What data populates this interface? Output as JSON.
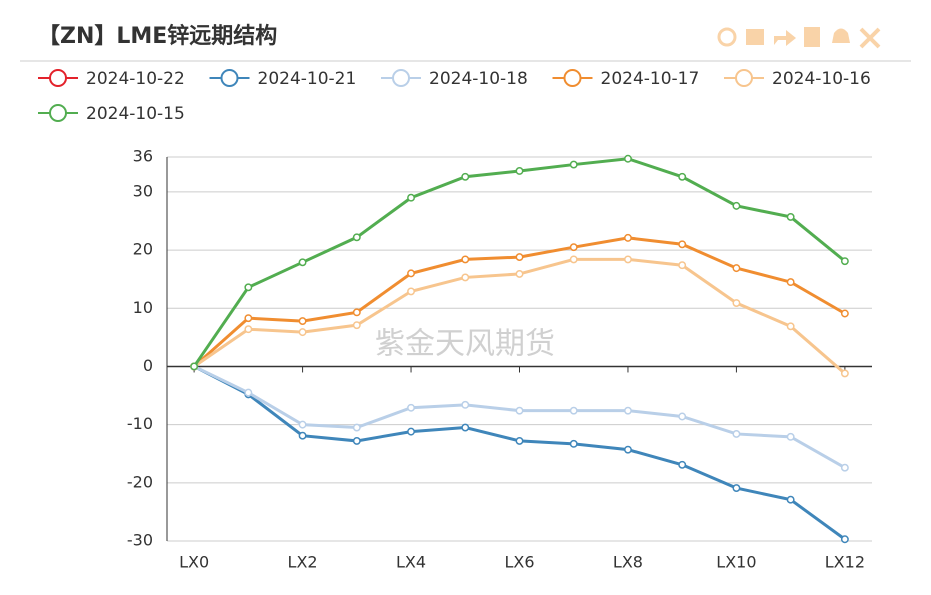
{
  "chart_data": {
    "type": "line",
    "title": "【ZN】LME锌远期结构",
    "watermark": "紫金天风期货",
    "categories": [
      "LX0",
      null,
      "LX2",
      null,
      "LX4",
      null,
      "LX6",
      null,
      "LX8",
      null,
      "LX10",
      null,
      "LX12"
    ],
    "series": [
      {
        "name": "2024-10-22",
        "color": "#e3222b",
        "values": [
          null,
          null,
          null,
          null,
          null,
          null,
          null,
          null,
          null,
          null,
          null,
          null,
          null
        ]
      },
      {
        "name": "2024-10-21",
        "color": "#3f86ba",
        "values": [
          0,
          -4.8,
          -11.9,
          -12.8,
          -11.2,
          -10.5,
          -12.8,
          -13.3,
          -14.3,
          -16.9,
          -20.9,
          -22.9,
          -29.7
        ]
      },
      {
        "name": "2024-10-18",
        "color": "#b9cfe8",
        "values": [
          0,
          -4.5,
          -10,
          -10.5,
          -7.1,
          -6.6,
          -7.6,
          -7.6,
          -7.6,
          -8.6,
          -11.6,
          -12.1,
          -17.4
        ]
      },
      {
        "name": "2024-10-17",
        "color": "#f08d30",
        "values": [
          0,
          8.3,
          7.8,
          9.3,
          16.0,
          18.4,
          18.8,
          20.5,
          22.1,
          21.0,
          16.9,
          14.5,
          9.1
        ]
      },
      {
        "name": "2024-10-16",
        "color": "#f7c58e",
        "values": [
          0,
          6.4,
          5.9,
          7.1,
          12.9,
          15.3,
          15.9,
          18.4,
          18.4,
          17.4,
          10.9,
          6.9,
          -1.2
        ]
      },
      {
        "name": "2024-10-15",
        "color": "#52ad50",
        "values": [
          0,
          13.6,
          17.9,
          22.2,
          29.0,
          32.6,
          33.6,
          34.7,
          35.7,
          32.6,
          27.6,
          25.7,
          18.1
        ]
      }
    ],
    "ylim": [
      -30,
      36
    ],
    "yticks": [
      -30,
      -20,
      -10,
      0,
      10,
      20,
      30,
      36
    ],
    "grid": true
  }
}
